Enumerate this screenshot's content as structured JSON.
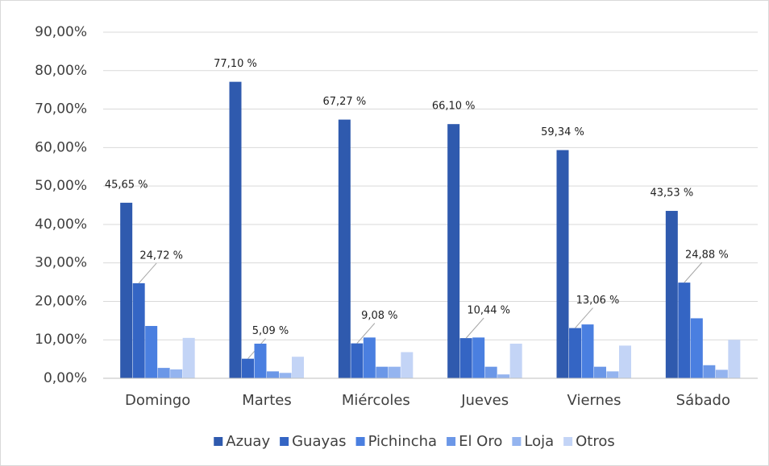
{
  "chart_data": {
    "type": "bar",
    "categories": [
      "Domingo",
      "Martes",
      "Miércoles",
      "Jueves",
      "Viernes",
      "Sábado"
    ],
    "series": [
      {
        "name": "Azuay",
        "color": "#2f5aae",
        "values": [
          45.65,
          77.1,
          67.27,
          66.1,
          59.34,
          43.53
        ],
        "value_labels": [
          "45,65 %",
          "77,10 %",
          "67,27 %",
          "66,10 %",
          "59,34 %",
          "43,53 %"
        ]
      },
      {
        "name": "Guayas",
        "color": "#3465c4",
        "values": [
          24.72,
          5.09,
          9.08,
          10.44,
          13.06,
          24.88
        ],
        "value_labels": [
          "24,72 %",
          "5,09 %",
          "9,08 %",
          "10,44 %",
          "13,06 %",
          "24,88 %"
        ]
      },
      {
        "name": "Pichincha",
        "color": "#4a7fe0",
        "values": [
          13.6,
          9.0,
          10.6,
          10.6,
          14.0,
          15.6
        ]
      },
      {
        "name": "El Oro",
        "color": "#6b97e7",
        "values": [
          2.7,
          1.8,
          3.0,
          3.0,
          3.0,
          3.4
        ]
      },
      {
        "name": "Loja",
        "color": "#94b4ef",
        "values": [
          2.3,
          1.4,
          3.0,
          1.0,
          1.8,
          2.2
        ]
      },
      {
        "name": "Otros",
        "color": "#c3d4f6",
        "values": [
          10.5,
          5.6,
          6.8,
          9.0,
          8.5,
          10.0
        ]
      }
    ],
    "ylim": [
      0,
      90
    ],
    "yticks": [
      {
        "value": 0,
        "label": "0,00%"
      },
      {
        "value": 10,
        "label": "10,00%"
      },
      {
        "value": 20,
        "label": "20,00%"
      },
      {
        "value": 30,
        "label": "30,00%"
      },
      {
        "value": 40,
        "label": "40,00%"
      },
      {
        "value": 50,
        "label": "50,00%"
      },
      {
        "value": 60,
        "label": "60,00%"
      },
      {
        "value": 70,
        "label": "70,00%"
      },
      {
        "value": 80,
        "label": "80,00%"
      },
      {
        "value": 90,
        "label": "90,00%"
      }
    ],
    "grid": true,
    "legend": "bottom"
  }
}
